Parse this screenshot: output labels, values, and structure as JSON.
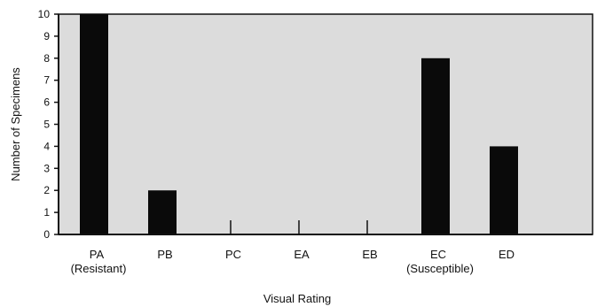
{
  "chart_data": {
    "type": "bar",
    "title": "",
    "xlabel": "Visual Rating",
    "ylabel": "Number of Specimens",
    "categories": [
      "PA",
      "PB",
      "PC",
      "EA",
      "EB",
      "EC",
      "ED"
    ],
    "category_sublabels": [
      "(Resistant)",
      "",
      "",
      "",
      "",
      "(Susceptible)",
      ""
    ],
    "values": [
      10,
      2,
      0,
      0,
      0,
      8,
      4
    ],
    "ylim": [
      0,
      10
    ],
    "yticks": [
      "0",
      "1",
      "2",
      "3",
      "4",
      "5",
      "6",
      "7",
      "8",
      "9",
      "10"
    ],
    "grid": false,
    "legend": "none",
    "colors": {
      "bar": "#0a0a0a",
      "plot_background": "#dcdcdc",
      "axis": "#111111"
    }
  }
}
